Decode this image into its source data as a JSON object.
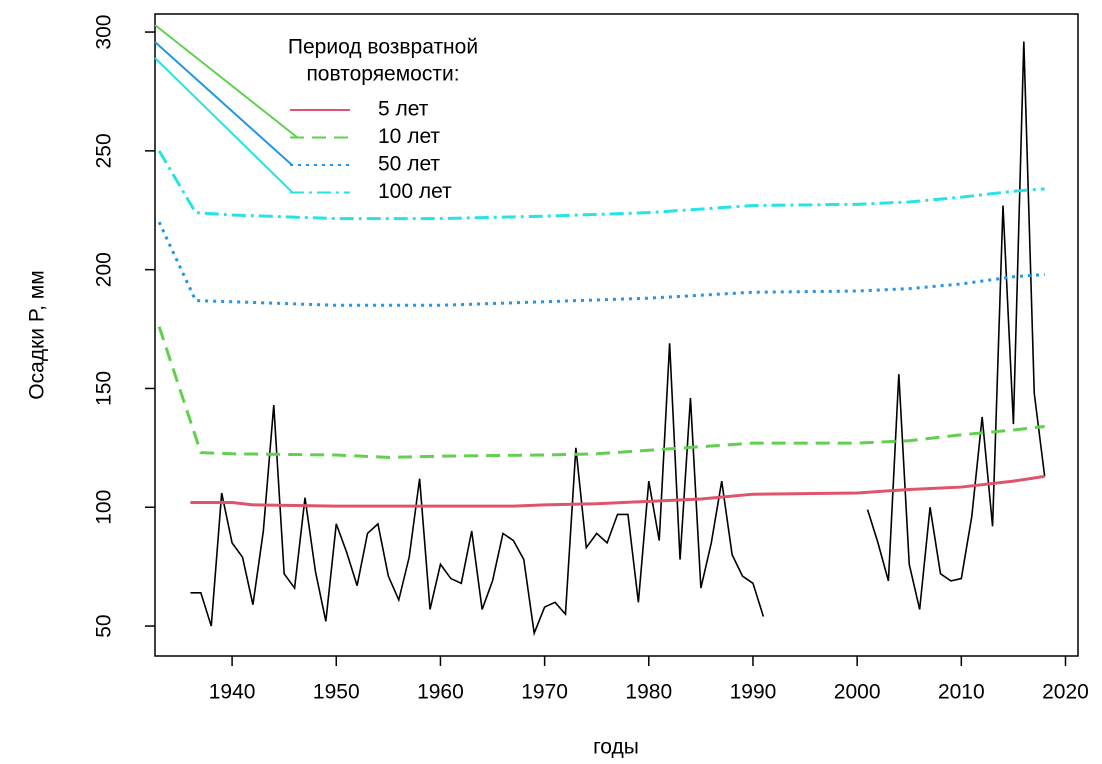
{
  "chart_data": {
    "type": "line",
    "xlabel": "годы",
    "ylabel": "Осадки P, мм",
    "xlim": [
      1932.6,
      2021.2
    ],
    "ylim": [
      37.4,
      307.6
    ],
    "xticks": [
      1940,
      1950,
      1960,
      1970,
      1980,
      1990,
      2000,
      2010,
      2020
    ],
    "yticks": [
      50,
      100,
      150,
      200,
      250,
      300
    ],
    "legend_title": [
      "Период возвратной",
      "повторяемости:"
    ],
    "legend": "top-left",
    "observed": {
      "color": "#000000",
      "x": [
        1936,
        1937,
        1938,
        1939,
        1940,
        1941,
        1942,
        1943,
        1944,
        1945,
        1946,
        1947,
        1948,
        1949,
        1950,
        1951,
        1952,
        1953,
        1954,
        1955,
        1956,
        1957,
        1958,
        1959,
        1960,
        1961,
        1962,
        1963,
        1964,
        1965,
        1966,
        1967,
        1968,
        1969,
        1970,
        1971,
        1972,
        1973,
        1974,
        1975,
        1976,
        1977,
        1978,
        1979,
        1980,
        1981,
        1982,
        1983,
        1984,
        1985,
        1986,
        1987,
        1988,
        1989,
        1990,
        1991,
        1992,
        1993,
        1994,
        1995,
        1996,
        1997,
        1998,
        1999,
        2000,
        2001,
        2002,
        2003,
        2004,
        2005,
        2006,
        2007,
        2008,
        2009,
        2010,
        2011,
        2012,
        2013,
        2014,
        2015,
        2016,
        2017,
        2018
      ],
      "values": [
        64,
        64,
        50,
        106,
        85,
        79,
        59,
        90,
        143,
        72,
        66,
        104,
        73,
        52,
        93,
        81,
        67,
        89,
        93,
        71,
        61,
        79,
        112,
        57,
        76,
        70,
        68,
        90,
        57,
        69,
        89,
        86,
        78,
        47,
        58,
        60,
        55,
        125,
        83,
        89,
        85,
        97,
        97,
        60,
        111,
        86,
        169,
        78,
        146,
        66,
        85,
        111,
        80,
        71,
        68,
        54,
        null,
        null,
        null,
        null,
        null,
        null,
        null,
        null,
        null,
        99,
        85,
        69,
        156,
        76,
        57,
        100,
        72,
        69,
        70,
        96,
        138,
        92,
        227,
        135,
        296,
        148,
        113
      ]
    },
    "series": [
      {
        "name": "5 лет",
        "color": "#df536b",
        "dash": "solid",
        "x": [
          1936,
          1940,
          1942,
          1950,
          1960,
          1967,
          1970,
          1975,
          1980,
          1985,
          1990,
          2000,
          2005,
          2010,
          2015,
          2018
        ],
        "values": [
          102,
          102,
          101,
          100.5,
          100.5,
          100.5,
          101,
          101.5,
          102.5,
          103.5,
          105.5,
          106,
          107.5,
          108.5,
          111,
          113
        ]
      },
      {
        "name": "10 лет",
        "color": "#61d04f",
        "dash": "dashed",
        "x": [
          1933,
          1937,
          1940,
          1950,
          1955,
          1960,
          1970,
          1975,
          1980,
          1985,
          1990,
          2000,
          2005,
          2010,
          2015,
          2018
        ],
        "values": [
          176,
          123,
          122.5,
          122,
          121,
          121.5,
          122,
          122.5,
          124,
          125.5,
          127,
          127,
          128,
          130.5,
          132.5,
          134
        ]
      },
      {
        "name": "50 лет",
        "color": "#2297e6",
        "dash": "dotted",
        "x": [
          1933,
          1936.5,
          1940,
          1950,
          1960,
          1970,
          1980,
          1990,
          2000,
          2005,
          2010,
          2015,
          2018
        ],
        "values": [
          220,
          187,
          186.5,
          185,
          185,
          186.5,
          188,
          190.5,
          191,
          192,
          194,
          197,
          198
        ]
      },
      {
        "name": "100 лет",
        "color": "#28e2e5",
        "dash": "dotdash",
        "x": [
          1933,
          1936.5,
          1940,
          1950,
          1960,
          1970,
          1980,
          1990,
          2000,
          2005,
          2010,
          2015,
          2018
        ],
        "values": [
          250,
          224,
          223,
          221.5,
          221.5,
          222.5,
          224,
          227,
          227.5,
          228.5,
          230.5,
          233,
          234
        ]
      }
    ]
  }
}
